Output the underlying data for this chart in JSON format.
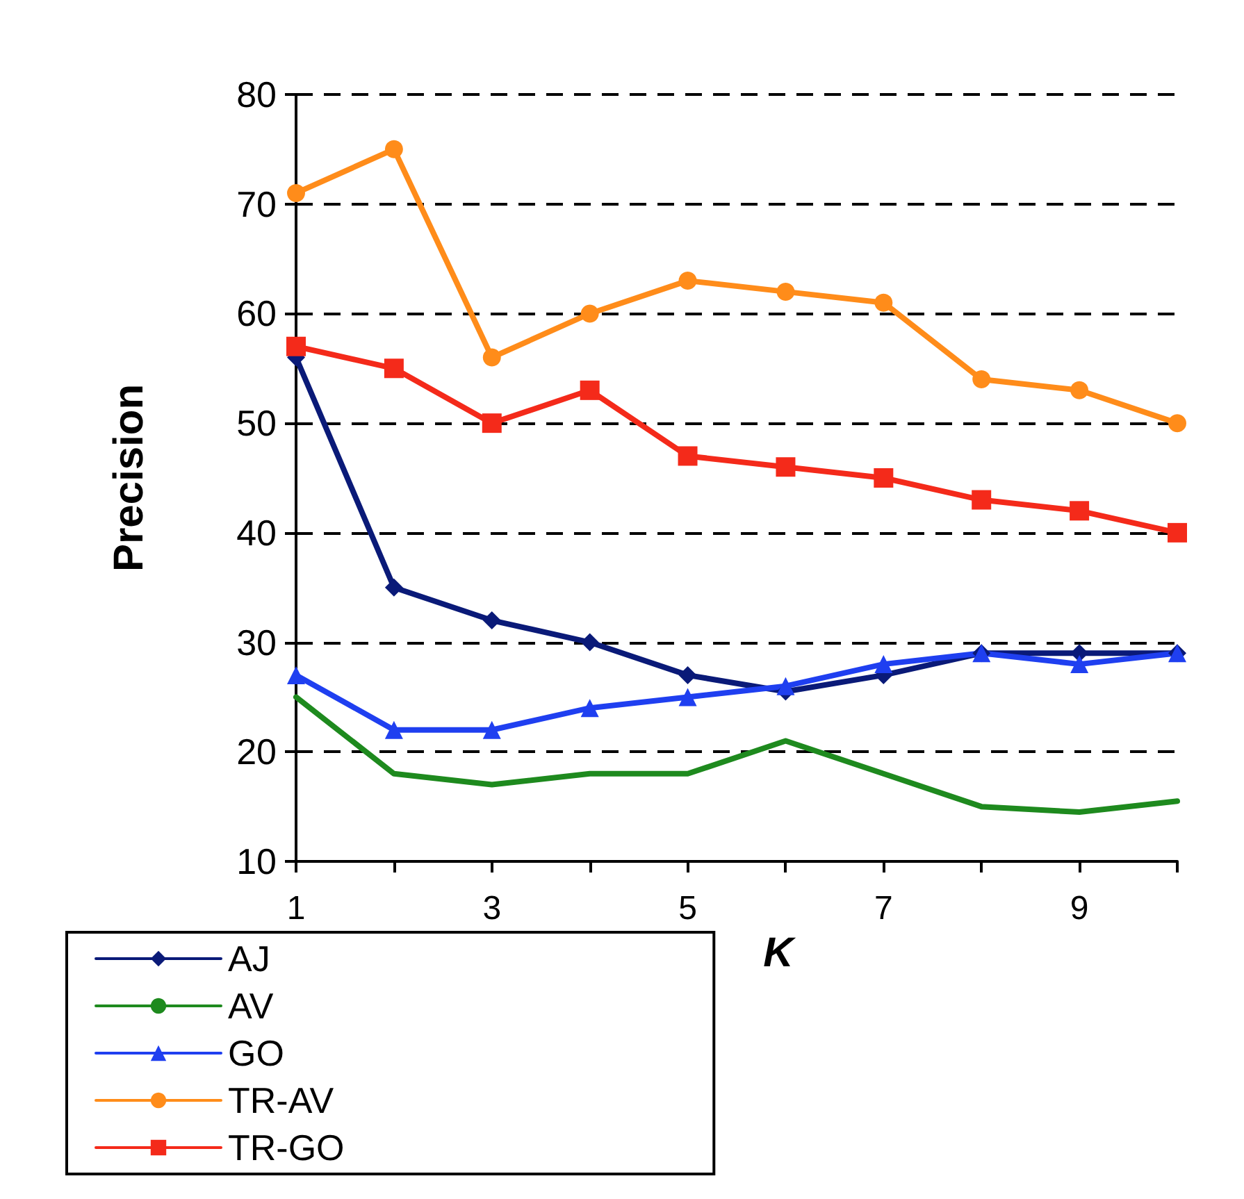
{
  "chart_data": {
    "type": "line",
    "xlabel": "K",
    "ylabel": "Precision",
    "x": [
      1,
      2,
      3,
      4,
      5,
      6,
      7,
      8,
      9,
      10
    ],
    "xlim": [
      1,
      10
    ],
    "xticks": [
      1,
      {
        "value": 2,
        "label": null
      },
      3,
      {
        "value": 4,
        "label": null
      },
      5,
      {
        "value": 6,
        "label": null
      },
      7,
      {
        "value": 8,
        "label": null
      },
      9,
      {
        "value": 10,
        "label": null
      }
    ],
    "ylim": [
      10,
      80
    ],
    "yticks": [
      10,
      20,
      30,
      40,
      50,
      60,
      70,
      80
    ],
    "grid": "y",
    "legend": "bottom",
    "line_style": "solid",
    "series": [
      {
        "name": "AJ",
        "color": "#0a1a78",
        "marker": "diamond",
        "values": [
          56,
          35,
          32,
          30,
          27,
          25.5,
          27,
          29,
          29,
          29
        ]
      },
      {
        "name": "AV",
        "color": "#1e8a1e",
        "marker": "none",
        "values": [
          25,
          18,
          17,
          18,
          18,
          21,
          18,
          15,
          14.5,
          15.5
        ]
      },
      {
        "name": "GO",
        "color": "#1f3ff0",
        "marker": "triangle",
        "values": [
          27,
          22,
          22,
          24,
          25,
          26,
          28,
          29,
          28,
          29
        ]
      },
      {
        "name": "TR-AV",
        "color": "#ff8c1a",
        "marker": "circle",
        "values": [
          71,
          75,
          56,
          60,
          63,
          62,
          61,
          54,
          53,
          50
        ]
      },
      {
        "name": "TR-GO",
        "color": "#f42a1a",
        "marker": "square",
        "values": [
          57,
          55,
          50,
          53,
          47,
          46,
          45,
          43,
          42,
          40
        ]
      }
    ]
  }
}
